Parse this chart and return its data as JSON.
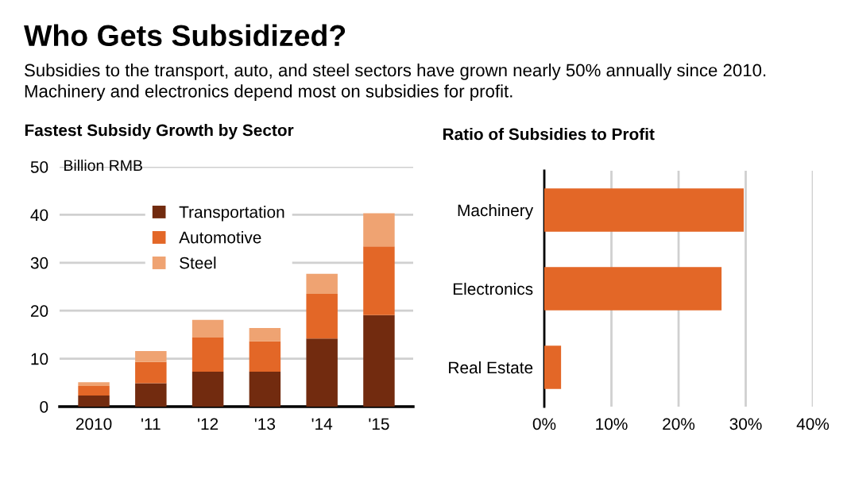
{
  "chart_data": [
    {
      "type": "bar",
      "title": "Fastest Subsidy Growth by Sector",
      "ylabel": "Billion RMB",
      "annotations": [
        "Who Gets Subsidized?",
        "Subsidies to the transport, auto, and steel sectors have grown nearly 50% annually since 2010. Machinery and electronics depend most on subsidies for profit."
      ],
      "categories": [
        "2010",
        "'11",
        "'12",
        "'13",
        "'14",
        "'15"
      ],
      "stacked": true,
      "series": [
        {
          "name": "Transportation",
          "color": "#722b0f",
          "values": [
            2.3,
            4.9,
            7.3,
            7.3,
            14.2,
            19.1
          ]
        },
        {
          "name": "Automotive",
          "color": "#e36727",
          "values": [
            2.0,
            4.4,
            7.1,
            6.3,
            9.3,
            14.3
          ]
        },
        {
          "name": "Steel",
          "color": "#efa372",
          "values": [
            0.8,
            2.3,
            3.7,
            2.8,
            4.2,
            6.9
          ]
        }
      ],
      "ylim": [
        0,
        50
      ],
      "yticks": [
        0,
        10,
        20,
        30,
        40,
        50
      ],
      "grid": "y",
      "legend": "top"
    },
    {
      "type": "bar",
      "title": "Ratio of Subsidies to Profit",
      "orientation": "horizontal",
      "categories": [
        "Machinery",
        "Electronics",
        "Real Estate"
      ],
      "series": [
        {
          "color": "#e36727",
          "values": [
            29.7,
            26.4,
            2.5
          ]
        }
      ],
      "xlim": [
        0,
        40
      ],
      "xticks": [
        {
          "value": 0,
          "label": "0%"
        },
        {
          "value": 10,
          "label": "10%"
        },
        {
          "value": 20,
          "label": "20%"
        },
        {
          "value": 30,
          "label": "30%"
        },
        {
          "value": 40,
          "label": "40%"
        }
      ],
      "grid": "x"
    }
  ]
}
